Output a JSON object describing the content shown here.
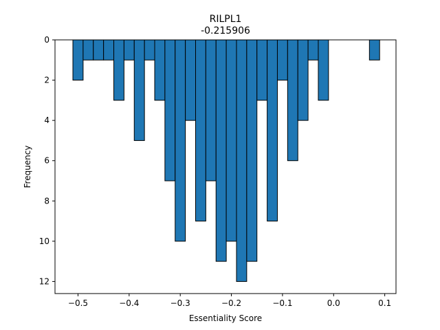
{
  "chart_data": {
    "type": "bar",
    "title": "RILPL1",
    "subtitle": "-0.215906",
    "xlabel": "Essentiality Score",
    "ylabel": "Frequency",
    "xlim": [
      -0.545,
      0.122
    ],
    "ylim": [
      12.6,
      0
    ],
    "y_axis_inverted": true,
    "bin_width": 0.02,
    "bar_color": "#1f77b4",
    "edge_color": "#000000",
    "x_ticks": [
      -0.5,
      -0.4,
      -0.3,
      -0.2,
      -0.1,
      0.0,
      0.1
    ],
    "x_tick_labels": [
      "−0.5",
      "−0.4",
      "−0.3",
      "−0.2",
      "−0.1",
      "0.0",
      "0.1"
    ],
    "y_ticks": [
      0,
      2,
      4,
      6,
      8,
      10,
      12
    ],
    "y_tick_labels": [
      "0",
      "2",
      "4",
      "6",
      "8",
      "10",
      "12"
    ],
    "bins_left": [
      -0.51,
      -0.49,
      -0.47,
      -0.45,
      -0.43,
      -0.41,
      -0.39,
      -0.37,
      -0.35,
      -0.33,
      -0.31,
      -0.29,
      -0.27,
      -0.25,
      -0.23,
      -0.21,
      -0.19,
      -0.17,
      -0.15,
      -0.13,
      -0.11,
      -0.09,
      -0.07,
      -0.05,
      -0.03,
      0.07
    ],
    "values": [
      2,
      1,
      1,
      1,
      3,
      1,
      5,
      1,
      3,
      7,
      10,
      4,
      9,
      7,
      11,
      10,
      12,
      11,
      3,
      9,
      2,
      6,
      4,
      1,
      3,
      1
    ]
  }
}
